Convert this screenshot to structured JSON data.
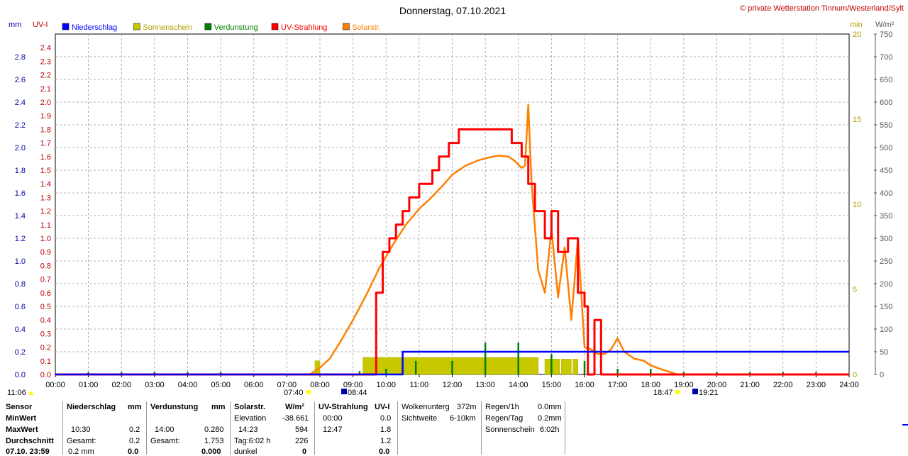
{
  "header": {
    "title": "Donnerstag, 07.10.2021",
    "copyright": "© private Wetterstation Tinnum/Westerland/Sylt"
  },
  "axes": {
    "left1_unit": "mm",
    "left2_unit": "UV-I",
    "right1_unit": "min",
    "right2_unit": "W/m²",
    "mm_ticks": [
      "2.8",
      "2.6",
      "2.4",
      "2.2",
      "2.0",
      "1.8",
      "1.6",
      "1.4",
      "1.2",
      "1.0",
      "0.8",
      "0.6",
      "0.4",
      "0.2",
      "0.0"
    ],
    "uv_ticks": [
      "2.4",
      "2.3",
      "2.2",
      "2.1",
      "2.0",
      "1.9",
      "1.8",
      "1.7",
      "1.6",
      "1.5",
      "1.4",
      "1.3",
      "1.2",
      "1.1",
      "1.0",
      "0.9",
      "0.8",
      "0.7",
      "0.6",
      "0.5",
      "0.4",
      "0.3",
      "0.2",
      "0.1",
      "0.0"
    ],
    "min_ticks": [
      "20",
      "15",
      "10",
      "5",
      "0"
    ],
    "wm2_ticks": [
      "750",
      "700",
      "650",
      "600",
      "550",
      "500",
      "450",
      "400",
      "350",
      "300",
      "250",
      "200",
      "150",
      "100",
      "50",
      "0"
    ],
    "x_ticks": [
      "00:00",
      "01:00",
      "02:00",
      "03:00",
      "04:00",
      "05:00",
      "06:00",
      "07:00",
      "08:00",
      "09:00",
      "10:00",
      "11:00",
      "12:00",
      "13:00",
      "14:00",
      "15:00",
      "16:00",
      "17:00",
      "18:00",
      "19:00",
      "20:00",
      "21:00",
      "22:00",
      "23:00",
      "24:00"
    ]
  },
  "legend": [
    {
      "label": "Niederschlag",
      "color": "#0000ff"
    },
    {
      "label": "Sonnenschein",
      "color": "#c8c800"
    },
    {
      "label": "Verdunstung",
      "color": "#008000"
    },
    {
      "label": "UV-Strahlung",
      "color": "#ff0000"
    },
    {
      "label": "Solarstr.",
      "color": "#ff8000"
    }
  ],
  "markers": {
    "moonset": "11:06",
    "sunrise": "07:40",
    "uv_start": "08:44",
    "sunset": "18:47",
    "uv_end": "19:21"
  },
  "chart_data": {
    "type": "line",
    "title": "Donnerstag, 07.10.2021",
    "x_range_hours": [
      0,
      24
    ],
    "ylim_mm": [
      0,
      3.0
    ],
    "ylim_uv": [
      0,
      2.5
    ],
    "ylim_min": [
      0,
      20
    ],
    "ylim_wm2": [
      0,
      750
    ],
    "grid": true,
    "legend_position": "top",
    "series": [
      {
        "name": "Niederschlag",
        "axis": "mm",
        "points": [
          [
            0,
            0
          ],
          [
            10.5,
            0
          ],
          [
            10.5,
            0.2
          ],
          [
            24,
            0.2
          ]
        ]
      },
      {
        "name": "UV-Strahlung",
        "axis": "uv",
        "points": [
          [
            0,
            0
          ],
          [
            9.7,
            0
          ],
          [
            9.7,
            0.6
          ],
          [
            9.9,
            0.6
          ],
          [
            9.9,
            0.9
          ],
          [
            10.1,
            0.9
          ],
          [
            10.1,
            1.0
          ],
          [
            10.3,
            1.0
          ],
          [
            10.3,
            1.1
          ],
          [
            10.5,
            1.1
          ],
          [
            10.5,
            1.2
          ],
          [
            10.7,
            1.2
          ],
          [
            10.7,
            1.3
          ],
          [
            11.0,
            1.3
          ],
          [
            11.0,
            1.4
          ],
          [
            11.4,
            1.4
          ],
          [
            11.4,
            1.5
          ],
          [
            11.6,
            1.5
          ],
          [
            11.6,
            1.6
          ],
          [
            11.9,
            1.6
          ],
          [
            11.9,
            1.7
          ],
          [
            12.2,
            1.7
          ],
          [
            12.2,
            1.8
          ],
          [
            13.8,
            1.8
          ],
          [
            13.8,
            1.7
          ],
          [
            14.1,
            1.7
          ],
          [
            14.1,
            1.6
          ],
          [
            14.3,
            1.6
          ],
          [
            14.3,
            1.4
          ],
          [
            14.5,
            1.4
          ],
          [
            14.5,
            1.2
          ],
          [
            14.8,
            1.2
          ],
          [
            14.8,
            1.0
          ],
          [
            15.0,
            1.0
          ],
          [
            15.0,
            1.2
          ],
          [
            15.2,
            1.2
          ],
          [
            15.2,
            0.9
          ],
          [
            15.5,
            0.9
          ],
          [
            15.5,
            1.0
          ],
          [
            15.8,
            1.0
          ],
          [
            15.8,
            0.6
          ],
          [
            16.0,
            0.6
          ],
          [
            16.0,
            0.5
          ],
          [
            16.1,
            0.5
          ],
          [
            16.1,
            0.0
          ],
          [
            16.3,
            0.0
          ],
          [
            16.3,
            0.4
          ],
          [
            16.5,
            0.4
          ],
          [
            16.5,
            0.0
          ],
          [
            24,
            0
          ]
        ]
      },
      {
        "name": "Solarstr.",
        "axis": "wm2",
        "points": [
          [
            7.7,
            0
          ],
          [
            8.0,
            15
          ],
          [
            8.3,
            35
          ],
          [
            8.6,
            70
          ],
          [
            9.0,
            120
          ],
          [
            9.4,
            175
          ],
          [
            9.8,
            235
          ],
          [
            10.2,
            285
          ],
          [
            10.6,
            330
          ],
          [
            11.0,
            365
          ],
          [
            11.3,
            385
          ],
          [
            11.5,
            400
          ],
          [
            11.7,
            415
          ],
          [
            12.0,
            440
          ],
          [
            12.4,
            460
          ],
          [
            12.8,
            472
          ],
          [
            13.1,
            478
          ],
          [
            13.4,
            482
          ],
          [
            13.7,
            480
          ],
          [
            13.9,
            470
          ],
          [
            14.1,
            455
          ],
          [
            14.2,
            460
          ],
          [
            14.3,
            594
          ],
          [
            14.4,
            420
          ],
          [
            14.6,
            230
          ],
          [
            14.8,
            180
          ],
          [
            15.0,
            320
          ],
          [
            15.2,
            170
          ],
          [
            15.4,
            280
          ],
          [
            15.6,
            120
          ],
          [
            15.8,
            300
          ],
          [
            16.0,
            60
          ],
          [
            16.2,
            55
          ],
          [
            16.4,
            45
          ],
          [
            16.6,
            45
          ],
          [
            16.8,
            55
          ],
          [
            17.0,
            80
          ],
          [
            17.2,
            50
          ],
          [
            17.5,
            35
          ],
          [
            17.8,
            30
          ],
          [
            18.0,
            20
          ],
          [
            18.3,
            12
          ],
          [
            18.6,
            5
          ],
          [
            18.8,
            0
          ],
          [
            24,
            0
          ]
        ]
      },
      {
        "name": "Sonnenschein",
        "axis": "min",
        "blocks": [
          [
            7.85,
            8.0,
            0.8
          ],
          [
            9.3,
            14.6,
            1.0
          ],
          [
            14.8,
            15.25,
            0.9
          ],
          [
            15.3,
            15.6,
            0.9
          ],
          [
            15.65,
            15.8,
            0.9
          ]
        ]
      },
      {
        "name": "Verdunstung",
        "axis": "mm",
        "spikes": [
          [
            1.0,
            0.02
          ],
          [
            2.0,
            0.02
          ],
          [
            3.0,
            0.02
          ],
          [
            4.0,
            0.02
          ],
          [
            5.0,
            0.02
          ],
          [
            9.2,
            0.03
          ],
          [
            10.0,
            0.05
          ],
          [
            10.9,
            0.12
          ],
          [
            12.0,
            0.12
          ],
          [
            13.0,
            0.28
          ],
          [
            14.0,
            0.28
          ],
          [
            15.0,
            0.18
          ],
          [
            16.0,
            0.12
          ],
          [
            17.0,
            0.05
          ],
          [
            18.0,
            0.05
          ],
          [
            19.0,
            0.02
          ],
          [
            20.0,
            0.02
          ],
          [
            21.0,
            0.02
          ],
          [
            22.0,
            0.02
          ],
          [
            23.0,
            0.02
          ]
        ]
      }
    ]
  },
  "table": {
    "row_labels": [
      "Sensor",
      "MinWert",
      "MaxWert",
      "Durchschnitt",
      "07.10. 23:59"
    ],
    "niederschlag": {
      "header": "Niederschlag",
      "unit": "mm",
      "max_time": "10:30",
      "max_val": "0.2",
      "sum_label": "Gesamt:",
      "sum_val": "0.2",
      "cur_val": "0.2 mm",
      "cur_diff": "0.0"
    },
    "verdunstung": {
      "header": "Verdunstung",
      "unit": "mm",
      "max_time": "14:00",
      "max_val": "0.280",
      "sum_label": "Gesamt:",
      "sum_val": "1.753",
      "cur_diff": "0.000"
    },
    "solar": {
      "header": "Solarstr.",
      "unit": "W/m²",
      "elev_label": "Elevation",
      "elev_val": "-38.661",
      "max_time": "14:23",
      "max_val": "594",
      "day_label": "Tag:6:02 h",
      "day_val": "226",
      "cur_label": "dunkel",
      "cur_val": "0"
    },
    "uv": {
      "header": "UV-Strahlung",
      "unit": "UV-I",
      "min_time": "00:00",
      "min_val": "0.0",
      "max_time": "12:47",
      "max_val": "1.8",
      "avg_val": "1.2",
      "cur_val": "0.0"
    },
    "wolken": {
      "label1": "Wolkenunterg",
      "val1": "372m",
      "label2": "Sichtweite",
      "val2": "6-10km"
    },
    "regen": {
      "label1": "Regen/1h",
      "val1": "0.0mm",
      "label2": "Regen/Tag",
      "val2": "0.2mm",
      "label3": "Sonnenschein",
      "val3": "6:02h"
    }
  }
}
